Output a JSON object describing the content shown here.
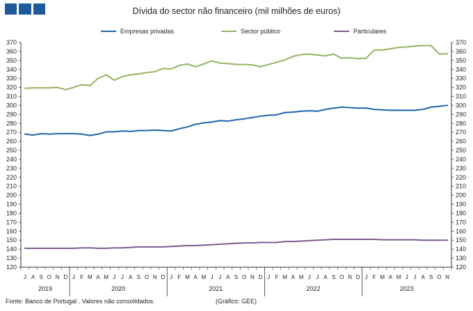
{
  "header": {
    "logo_icon": "gee-logo-blocks"
  },
  "chart_data": {
    "type": "line",
    "title": "Dívida do sector não financeiro (mil milhões de euros)",
    "source_note": "Fonte: Banco de Portugal . Valores não consolidados.",
    "credit_note": "(Gráfico: GEE)",
    "ylim": [
      120,
      370
    ],
    "ytick_step": 10,
    "y_axes": "both",
    "grid": false,
    "legend_position": "top",
    "month_labels": [
      "J",
      "A",
      "S",
      "O",
      "N",
      "D",
      "J",
      "F",
      "M",
      "A",
      "M",
      "J",
      "J",
      "A",
      "S",
      "O",
      "N",
      "D",
      "J",
      "F",
      "M",
      "A",
      "M",
      "J",
      "J",
      "A",
      "S",
      "O",
      "N",
      "D",
      "J",
      "F",
      "M",
      "A",
      "M",
      "J",
      "J",
      "A",
      "S",
      "O",
      "N",
      "D",
      "J",
      "F",
      "M",
      "A",
      "M",
      "J",
      "J",
      "A",
      "S",
      "O",
      "N"
    ],
    "years": [
      {
        "label": "2019",
        "months": 6
      },
      {
        "label": "2020",
        "months": 12
      },
      {
        "label": "2021",
        "months": 12
      },
      {
        "label": "2022",
        "months": 12
      },
      {
        "label": "2023",
        "months": 11
      }
    ],
    "series": [
      {
        "name": "Empresas privadas",
        "color": "#1f64ad",
        "values": [
          268,
          267,
          268.5,
          268,
          268.5,
          268.5,
          268.5,
          268,
          266.5,
          268,
          270.5,
          270.5,
          271.5,
          271,
          272,
          272,
          272.5,
          272,
          271.5,
          274,
          276,
          279,
          280.5,
          281.5,
          283,
          282.5,
          284,
          285,
          286.5,
          288,
          289,
          289.5,
          292,
          292.5,
          293.5,
          294,
          293.5,
          295.5,
          297,
          298,
          297.5,
          297,
          297,
          295.5,
          295,
          294.5,
          294.5,
          294.5,
          294.5,
          295.5,
          298,
          299,
          300
        ]
      },
      {
        "name": "Sector público",
        "color": "#94b45e",
        "values": [
          319,
          319.5,
          319.5,
          319.5,
          320,
          317.5,
          320,
          323,
          322,
          330,
          334,
          328,
          332,
          334,
          335,
          336.5,
          337.5,
          341,
          340.5,
          344.5,
          346,
          343,
          346,
          349.5,
          347,
          346.5,
          345.5,
          345.5,
          345,
          343,
          345.5,
          348,
          350.5,
          354.5,
          356.5,
          357,
          356,
          355,
          357,
          352.5,
          353,
          352,
          352.5,
          361.5,
          361.5,
          363,
          364.5,
          365,
          366,
          366.5,
          366.5,
          357,
          357.5
        ]
      },
      {
        "name": "Particulares",
        "color": "#7b5a91",
        "values": [
          141,
          141,
          141,
          141,
          141,
          141,
          141,
          141.5,
          141.5,
          141,
          141,
          141.5,
          141.5,
          142,
          142.5,
          142.5,
          142.5,
          142.5,
          143,
          143.5,
          144,
          144,
          144.5,
          145,
          145.5,
          146,
          146.5,
          147,
          147,
          147.5,
          147.5,
          147.5,
          148.5,
          148.5,
          149,
          149.5,
          150,
          150.5,
          151,
          151,
          151,
          151,
          151,
          151,
          150.5,
          150.5,
          150.5,
          150.5,
          150.5,
          150,
          150,
          150,
          150
        ]
      }
    ]
  }
}
